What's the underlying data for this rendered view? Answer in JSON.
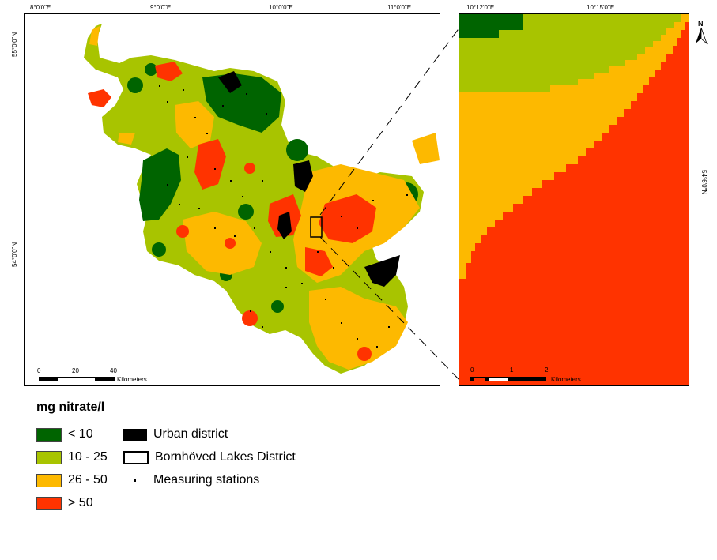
{
  "main_map": {
    "lon_ticks": [
      "8°0'0\"E",
      "9°0'0\"E",
      "10°0'0\"E",
      "11°0'0\"E"
    ],
    "lat_ticks": [
      "55°0'0\"N",
      "54°0'0\"N"
    ],
    "scale": {
      "labels": [
        "0",
        "20",
        "40"
      ],
      "unit": "Kilometers"
    }
  },
  "inset_map": {
    "lon_ticks": [
      "10°12'0\"E",
      "10°15'0\"E"
    ],
    "lat_ticks": [
      "54°6'0\"N"
    ],
    "north_arrow": "N",
    "scale": {
      "labels": [
        "0",
        "1",
        "2"
      ],
      "unit": "Kilometers"
    }
  },
  "legend": {
    "title": "mg nitrate/l",
    "classes": [
      {
        "label": "< 10",
        "color": "#006400"
      },
      {
        "label": "10 - 25",
        "color": "#a8c400"
      },
      {
        "label": "26 - 50",
        "color": "#fdb900"
      },
      {
        "label": "> 50",
        "color": "#ff3300"
      }
    ],
    "symbols": [
      {
        "label": "Urban district",
        "icon": "black-fill"
      },
      {
        "label": "Bornhöved Lakes District",
        "icon": "outline-rect"
      },
      {
        "label": "Measuring stations",
        "icon": "dot"
      }
    ]
  }
}
